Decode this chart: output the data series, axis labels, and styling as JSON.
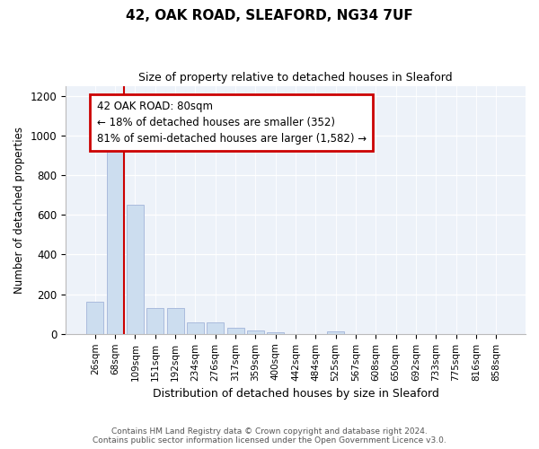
{
  "title": "42, OAK ROAD, SLEAFORD, NG34 7UF",
  "subtitle": "Size of property relative to detached houses in Sleaford",
  "xlabel": "Distribution of detached houses by size in Sleaford",
  "ylabel": "Number of detached properties",
  "bar_labels": [
    "26sqm",
    "68sqm",
    "109sqm",
    "151sqm",
    "192sqm",
    "234sqm",
    "276sqm",
    "317sqm",
    "359sqm",
    "400sqm",
    "442sqm",
    "484sqm",
    "525sqm",
    "567sqm",
    "608sqm",
    "650sqm",
    "692sqm",
    "733sqm",
    "775sqm",
    "816sqm",
    "858sqm"
  ],
  "bar_values": [
    160,
    930,
    650,
    130,
    130,
    58,
    58,
    30,
    18,
    10,
    0,
    0,
    15,
    0,
    0,
    0,
    0,
    0,
    0,
    0,
    0
  ],
  "bar_color": "#ccddef",
  "bar_edge_color": "#aabbdd",
  "red_line_color": "#cc0000",
  "annotation_text": "42 OAK ROAD: 80sqm\n← 18% of detached houses are smaller (352)\n81% of semi-detached houses are larger (1,582) →",
  "annotation_box_color": "#ffffff",
  "annotation_box_edge": "#cc0000",
  "ylim": [
    0,
    1250
  ],
  "yticks": [
    0,
    200,
    400,
    600,
    800,
    1000,
    1200
  ],
  "background_color": "#edf2f9",
  "footer_line1": "Contains HM Land Registry data © Crown copyright and database right 2024.",
  "footer_line2": "Contains public sector information licensed under the Open Government Licence v3.0."
}
